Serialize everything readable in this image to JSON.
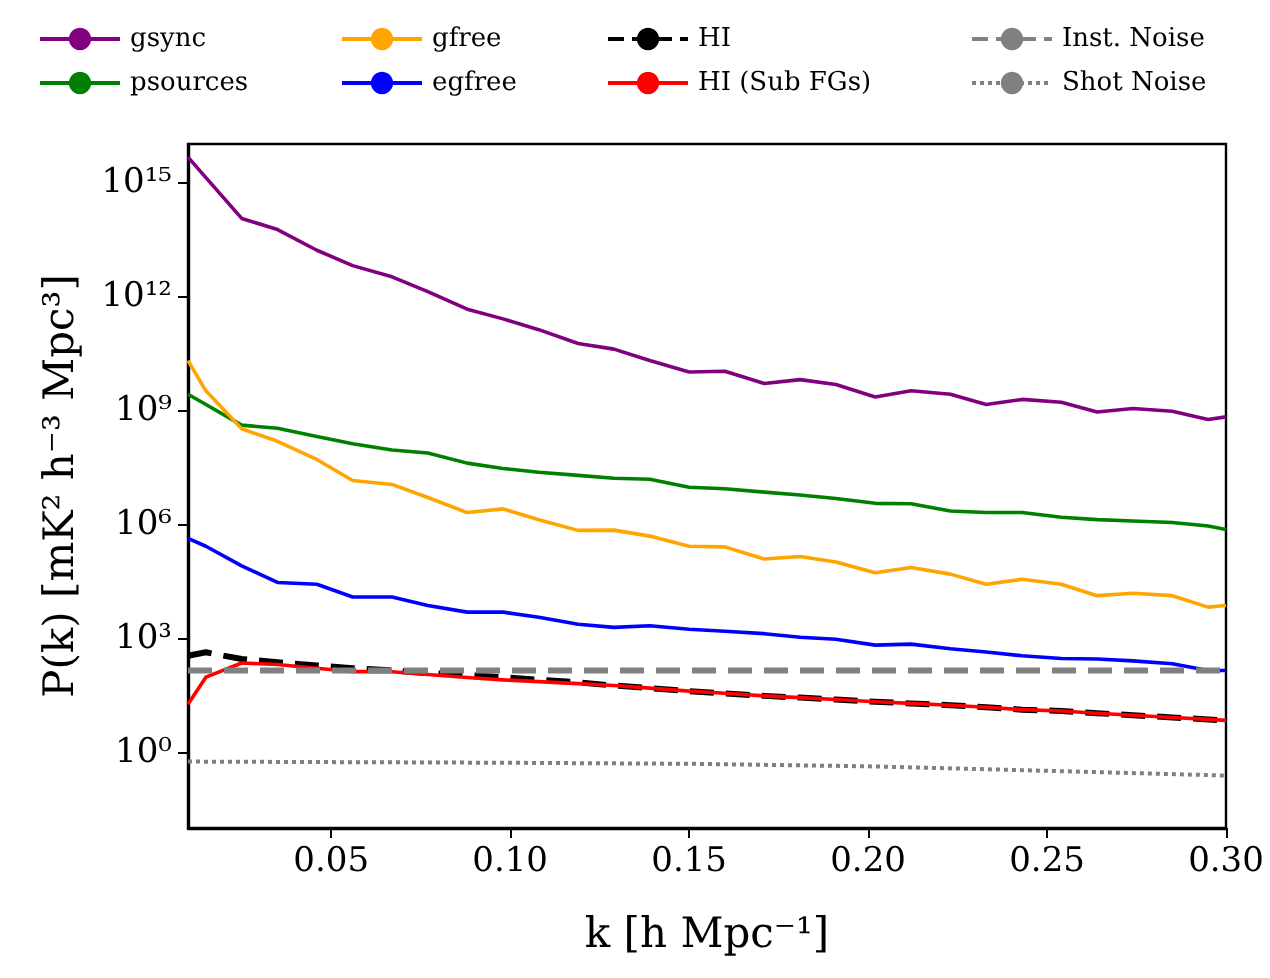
{
  "chart_data": {
    "type": "line",
    "xlabel": "k [h Mpc⁻¹]",
    "ylabel": "P(k) [mK² h⁻³ Mpc³]",
    "x": [
      0.01,
      0.015,
      0.025,
      0.035,
      0.046,
      0.056,
      0.067,
      0.077,
      0.088,
      0.098,
      0.108,
      0.119,
      0.129,
      0.139,
      0.15,
      0.16,
      0.171,
      0.181,
      0.191,
      0.202,
      0.212,
      0.223,
      0.233,
      0.243,
      0.254,
      0.264,
      0.274,
      0.285,
      0.295,
      0.3
    ],
    "series": [
      {
        "name": "gsync",
        "color": "#800080",
        "line_style": "solid",
        "values": [
          4500000000000000.0,
          1300000000000000.0,
          110000000000000.0,
          56000000000000.0,
          16000000000000.0,
          6300000000000.0,
          3200000000000.0,
          1300000000000.0,
          450000000000.0,
          250000000000.0,
          130000000000.0,
          56000000000.0,
          40000000000.0,
          20000000000.0,
          10000000000.0,
          10500000000.0,
          5000000000.0,
          6300000000.0,
          4700000000.0,
          2200000000.0,
          3200000000.0,
          2600000000.0,
          1400000000.0,
          1900000000.0,
          1600000000.0,
          890000000.0,
          1100000000.0,
          930000000.0,
          560000000.0,
          660000000.0
        ]
      },
      {
        "name": "psources",
        "color": "#008000",
        "line_style": "solid",
        "values": [
          2600000000.0,
          1400000000.0,
          400000000.0,
          330000000.0,
          200000000.0,
          130000000.0,
          89000000.0,
          74000000.0,
          40000000.0,
          29000000.0,
          23000000.0,
          19000000.0,
          16000000.0,
          15000000.0,
          9300000.0,
          8500000.0,
          6900000.0,
          5800000.0,
          4700000.0,
          3500000.0,
          3400000.0,
          2200000.0,
          2000000.0,
          2000000.0,
          1500000.0,
          1300000.0,
          1200000.0,
          1100000.0,
          890000.0,
          720000.0
        ]
      },
      {
        "name": "gfree",
        "color": "#ffa500",
        "line_style": "solid",
        "values": [
          20000000000.0,
          3200000000.0,
          320000000.0,
          150000000.0,
          50000000.0,
          14000000.0,
          11000000.0,
          5000000.0,
          2000000.0,
          2500000.0,
          1300000.0,
          680000.0,
          690000.0,
          480000.0,
          260000.0,
          250000.0,
          120000.0,
          140000.0,
          100000.0,
          52000.0,
          72000.0,
          48000.0,
          26000.0,
          35000.0,
          26000.0,
          13000.0,
          15000.0,
          13000.0,
          6500.0,
          7200.0
        ]
      },
      {
        "name": "egfree",
        "color": "#0000ff",
        "line_style": "solid",
        "values": [
          420000.0,
          260000.0,
          79000.0,
          29000.0,
          26000.0,
          12000.0,
          12000.0,
          7200.0,
          4800.0,
          4800.0,
          3500.0,
          2300.0,
          1900.0,
          2100.0,
          1700.0,
          1500.0,
          1300.0,
          1050.0,
          930,
          650,
          690,
          520,
          430,
          340,
          290,
          280,
          250,
          210,
          140,
          140
        ]
      },
      {
        "name": "HI",
        "color": "#000000",
        "line_style": "dashed",
        "values": [
          340,
          420,
          280,
          230,
          190,
          160,
          140,
          120,
          105,
          93,
          79,
          68,
          56,
          48,
          40,
          35,
          30,
          27,
          24,
          21,
          19,
          17,
          15,
          13,
          12,
          10.5,
          9.3,
          8.1,
          7.2,
          6.8
        ]
      },
      {
        "name": "HI (Sub FGs)",
        "color": "#ff0000",
        "line_style": "solid",
        "values": [
          18,
          93,
          220,
          200,
          160,
          130,
          130,
          110,
          91,
          79,
          71,
          63,
          56,
          48,
          40,
          35,
          30,
          27,
          24,
          21,
          19,
          17,
          15,
          13,
          12,
          10.5,
          9.3,
          8.1,
          7.2,
          6.8
        ]
      },
      {
        "name": "Inst. Noise",
        "color": "#808080",
        "line_style": "dashed",
        "x": [
          0.01,
          0.3
        ],
        "values": [
          140,
          140
        ]
      },
      {
        "name": "Shot Noise",
        "color": "#808080",
        "line_style": "dotted",
        "x": [
          0.01,
          0.1,
          0.15,
          0.2,
          0.25,
          0.3
        ],
        "values": [
          0.56,
          0.52,
          0.49,
          0.42,
          0.32,
          0.24
        ]
      }
    ],
    "xlim": [
      0.01,
      0.3
    ],
    "xticks": [
      0.05,
      {
        "value": 0.1,
        "label": "0.10"
      },
      0.15,
      {
        "value": 0.2,
        "label": "0.20"
      },
      0.25,
      {
        "value": 0.3,
        "label": "0.30"
      }
    ],
    "ylim": [
      0.01,
      1e+16
    ],
    "yticks": [
      {
        "value": 1,
        "label": "10⁰"
      },
      {
        "value": 1000,
        "label": "10³"
      },
      {
        "value": 1000000.0,
        "label": "10⁶"
      },
      {
        "value": 1000000000.0,
        "label": "10⁹"
      },
      {
        "value": 1000000000000.0,
        "label": "10¹²"
      },
      {
        "value": 1000000000000000.0,
        "label": "10¹⁵"
      }
    ],
    "log": "y",
    "grid": false,
    "legend": "top",
    "marker": "none"
  }
}
